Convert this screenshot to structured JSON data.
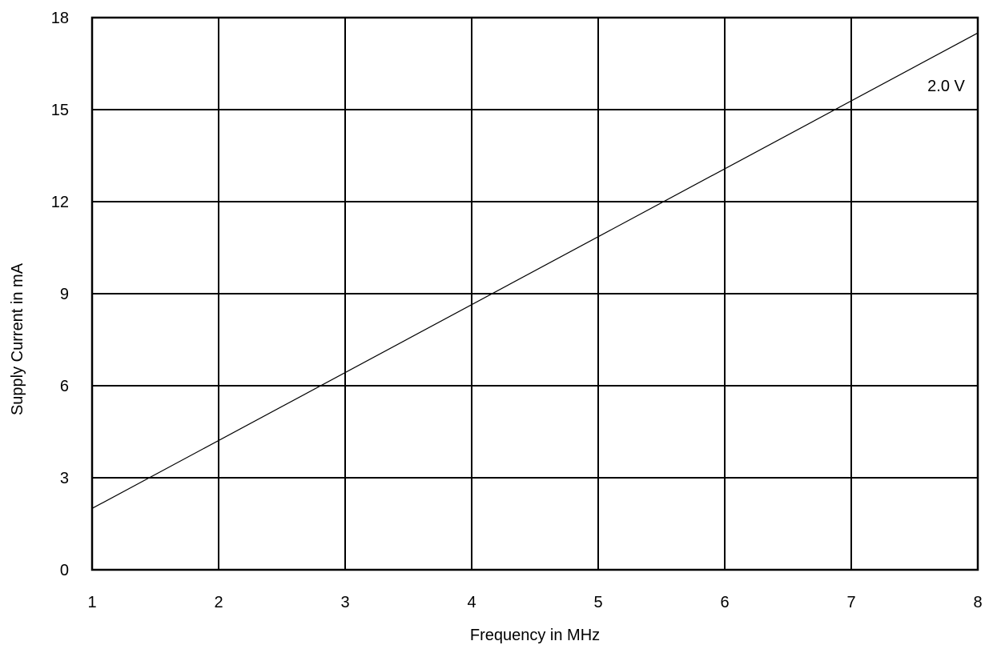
{
  "chart_data": {
    "type": "line",
    "title": "",
    "xlabel": "Frequency in MHz",
    "ylabel": "Supply Current in mA",
    "xlim": [
      1,
      8
    ],
    "ylim": [
      0,
      18
    ],
    "x_ticks": [
      "1",
      "2",
      "3",
      "4",
      "5",
      "6",
      "7",
      "8"
    ],
    "y_ticks": [
      "0",
      "3",
      "6",
      "9",
      "12",
      "15",
      "18"
    ],
    "grid": true,
    "legend": "none",
    "series": [
      {
        "label": "2.0 V",
        "x": [
          1,
          8
        ],
        "y": [
          2.0,
          17.5
        ]
      }
    ]
  }
}
